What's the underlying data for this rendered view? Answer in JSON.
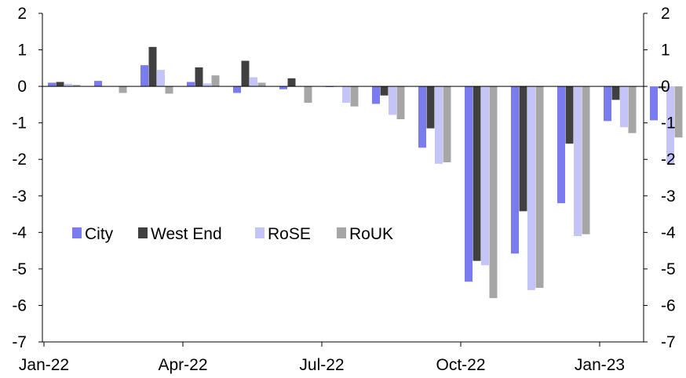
{
  "chart_data": {
    "type": "bar",
    "categories": [
      "Jan-22",
      "Feb-22",
      "Mar-22",
      "Apr-22",
      "May-22",
      "Jun-22",
      "Jul-22",
      "Aug-22",
      "Sep-22",
      "Oct-22",
      "Nov-22",
      "Dec-22",
      "Jan-23",
      "Feb-23"
    ],
    "x_tick_labels": [
      "Jan-22",
      "Apr-22",
      "Jul-22",
      "Oct-22",
      "Jan-23"
    ],
    "y_ticks": [
      2,
      1,
      0,
      -1,
      -2,
      -3,
      -4,
      -5,
      -6,
      -7
    ],
    "ylim": [
      -7,
      2
    ],
    "grid": false,
    "legend_position": "center-left",
    "series": [
      {
        "name": "City",
        "color": "#7b7bf0",
        "values": [
          0.1,
          0.15,
          0.58,
          0.12,
          -0.18,
          -0.08,
          -0.02,
          -0.48,
          -1.68,
          -5.35,
          -4.58,
          -3.2,
          -0.95,
          -0.93
        ]
      },
      {
        "name": "West End",
        "color": "#404040",
        "values": [
          0.12,
          0.0,
          1.08,
          0.52,
          0.7,
          0.22,
          0.0,
          -0.25,
          -1.15,
          -4.78,
          -3.42,
          -1.57,
          -0.37,
          -0.05
        ]
      },
      {
        "name": "RoSE",
        "color": "#c4c4f8",
        "values": [
          0.07,
          0.0,
          0.45,
          0.08,
          0.25,
          0.0,
          -0.45,
          -0.78,
          -2.12,
          -4.9,
          -5.58,
          -4.1,
          -1.12,
          -2.12
        ]
      },
      {
        "name": "RoUK",
        "color": "#a6a6a6",
        "values": [
          0.04,
          -0.18,
          -0.2,
          0.3,
          0.1,
          -0.45,
          -0.55,
          -0.9,
          -2.08,
          -5.8,
          -5.52,
          -4.05,
          -1.28,
          -1.4
        ]
      }
    ]
  }
}
